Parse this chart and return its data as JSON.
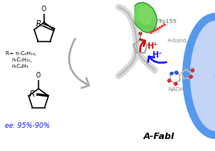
{
  "background_color": "#ffffff",
  "left_panel": {
    "r_groups_line1": "R= n-C₆H₁₃,",
    "r_groups_line2": "n-C₅H₁₁,",
    "r_groups_line3": "n-C₄H₉",
    "ee_text": "ee: 95%-90%",
    "ee_color": "#1a1aff"
  },
  "right_panel": {
    "trp_label": "Trp159",
    "trp_color": "#557755",
    "hbond_label": "H-bond",
    "hbond_color": "#888888",
    "hminus_label": "H⁻",
    "hminus_color": "#1a1aff",
    "hplus_label": "H⁺",
    "hplus_color": "#cc1111",
    "nadh_label": "NADH",
    "nadh_color": "#888888",
    "fabI_label": "A-FabI",
    "fabI_color": "#000000"
  },
  "arrow_color": "#aaaaaa",
  "figsize": [
    2.68,
    1.89
  ],
  "dpi": 100
}
